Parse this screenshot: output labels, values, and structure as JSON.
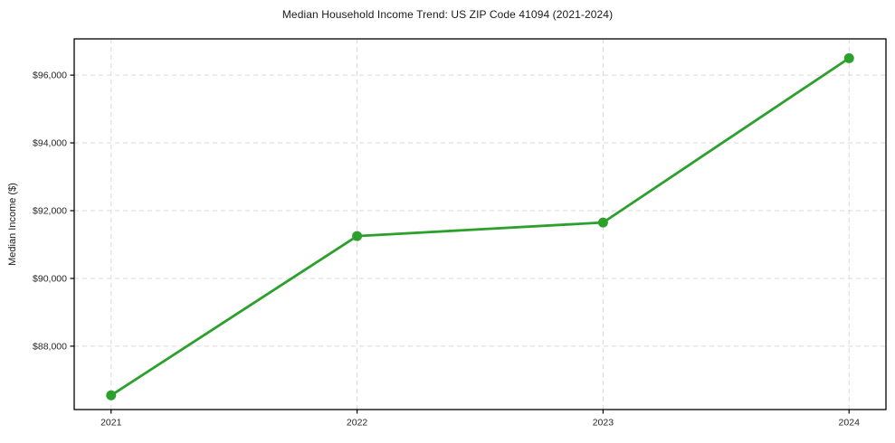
{
  "figure": {
    "title": "Median Household Income Trend: US ZIP Code 41094 (2021-2024)",
    "ylabel": "Median Income ($)"
  },
  "chart_data": {
    "type": "line",
    "title": "Median Household Income Trend: US ZIP Code 41094 (2021-2024)",
    "xlabel": "",
    "ylabel": "Median Income ($)",
    "x": [
      2021,
      2022,
      2023,
      2024
    ],
    "x_tick_labels": [
      "2021",
      "2022",
      "2023",
      "2024"
    ],
    "values": [
      86550,
      91250,
      91650,
      96500
    ],
    "y_ticks": [
      88000,
      90000,
      92000,
      94000,
      96000
    ],
    "y_tick_labels": [
      "$88,000",
      "$90,000",
      "$92,000",
      "$94,000",
      "$96,000"
    ],
    "xlim": [
      2020.85,
      2024.15
    ],
    "ylim": [
      86130,
      97070
    ],
    "grid": true,
    "grid_style": "dashed",
    "legend_position": "none",
    "marker": "circle",
    "colors": {
      "line": "#2ca02c",
      "marker": "#2ca02c",
      "grid": "#d9d9d9",
      "axis": "#000000",
      "tick_text": "#262626",
      "title_text": "#1a1a1a",
      "background": "#ffffff"
    }
  }
}
